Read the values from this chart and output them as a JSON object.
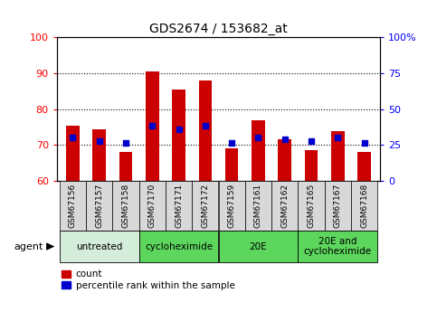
{
  "title": "GDS2674 / 153682_at",
  "samples": [
    "GSM67156",
    "GSM67157",
    "GSM67158",
    "GSM67170",
    "GSM67171",
    "GSM67172",
    "GSM67159",
    "GSM67161",
    "GSM67162",
    "GSM67165",
    "GSM67167",
    "GSM67168"
  ],
  "counts": [
    75.5,
    74.5,
    68.0,
    90.5,
    85.5,
    88.0,
    69.0,
    77.0,
    71.5,
    68.5,
    74.0,
    68.0
  ],
  "percentile_ranks": [
    72,
    71,
    70.5,
    75.5,
    74.5,
    75.5,
    70.5,
    72,
    71.5,
    71,
    72,
    70.5
  ],
  "y_min": 60,
  "y_max": 100,
  "y_ticks_left": [
    60,
    70,
    80,
    90,
    100
  ],
  "y_ticks_right_vals": [
    0,
    25,
    50,
    75,
    100
  ],
  "y_right_labels": [
    "0",
    "25",
    "50",
    "75",
    "100%"
  ],
  "grid_lines": [
    70,
    80,
    90
  ],
  "groups": [
    {
      "label": "untreated",
      "start": 0,
      "end": 3,
      "color": "#d4edda"
    },
    {
      "label": "cycloheximide",
      "start": 3,
      "end": 6,
      "color": "#5cd65c"
    },
    {
      "label": "20E",
      "start": 6,
      "end": 9,
      "color": "#5cd65c"
    },
    {
      "label": "20E and\ncycloheximide",
      "start": 9,
      "end": 12,
      "color": "#5cd65c"
    }
  ],
  "bar_color": "#cc0000",
  "percentile_color": "#0000cc",
  "bar_width": 0.5,
  "legend_count_label": "count",
  "legend_pct_label": "percentile rank within the sample"
}
